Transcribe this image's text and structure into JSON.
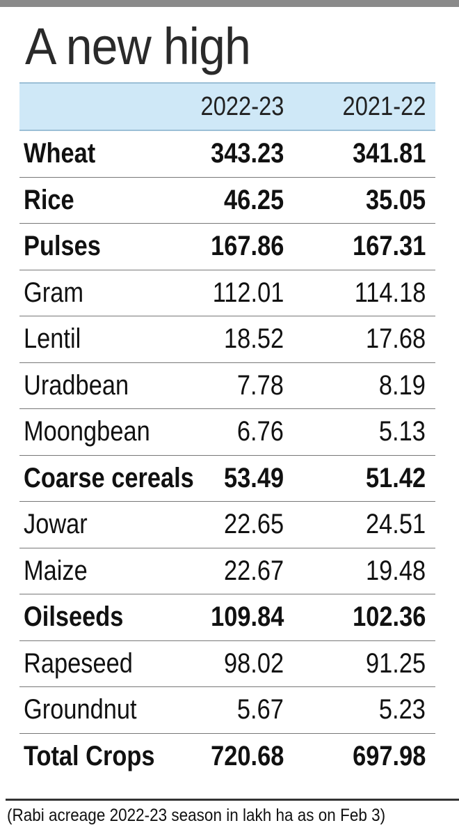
{
  "title": "A new high",
  "footnote": "(Rabi acreage 2022-23 season in lakh ha as on Feb 3)",
  "colors": {
    "header_bg": "#cfe8f7",
    "text": "#111111",
    "rule": "#333333"
  },
  "chart_data": {
    "type": "table",
    "title": "A new high",
    "columns": [
      "",
      "2022-23",
      "2021-22"
    ],
    "rows": [
      {
        "label": "Wheat",
        "v1": "343.23",
        "v2": "341.81",
        "bold": true
      },
      {
        "label": "Rice",
        "v1": "46.25",
        "v2": "35.05",
        "bold": true
      },
      {
        "label": "Pulses",
        "v1": "167.86",
        "v2": "167.31",
        "bold": true
      },
      {
        "label": "Gram",
        "v1": "112.01",
        "v2": "114.18",
        "bold": false
      },
      {
        "label": "Lentil",
        "v1": "18.52",
        "v2": "17.68",
        "bold": false
      },
      {
        "label": "Uradbean",
        "v1": "7.78",
        "v2": "8.19",
        "bold": false
      },
      {
        "label": "Moongbean",
        "v1": "6.76",
        "v2": "5.13",
        "bold": false
      },
      {
        "label": "Coarse cereals",
        "v1": "53.49",
        "v2": "51.42",
        "bold": true
      },
      {
        "label": "Jowar",
        "v1": "22.65",
        "v2": "24.51",
        "bold": false
      },
      {
        "label": "Maize",
        "v1": "22.67",
        "v2": "19.48",
        "bold": false
      },
      {
        "label": "Oilseeds",
        "v1": "109.84",
        "v2": "102.36",
        "bold": true
      },
      {
        "label": "Rapeseed",
        "v1": "98.02",
        "v2": "91.25",
        "bold": false
      },
      {
        "label": "Groundnut",
        "v1": "5.67",
        "v2": "5.23",
        "bold": false
      },
      {
        "label": "Total Crops",
        "v1": "720.68",
        "v2": "697.98",
        "bold": true
      }
    ]
  }
}
